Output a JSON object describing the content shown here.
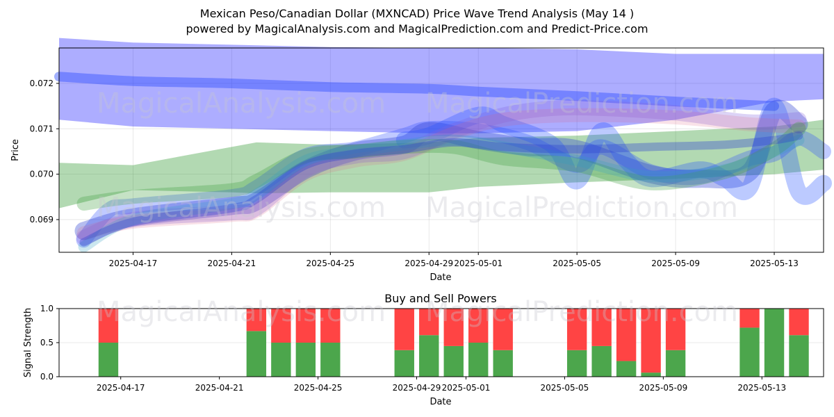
{
  "figure": {
    "title_line1": "Mexican Peso/Canadian Dollar (MXNCAD) Price Wave Trend Analysis (May 14 )",
    "title_line2": "powered by MagicalAnalysis.com and MagicalPrediction.com and Predict-Price.com",
    "watermarks": [
      "MagicalAnalysis.com",
      "MagicalPrediction.com"
    ]
  },
  "chart_data": [
    {
      "type": "line",
      "title": "",
      "xlabel": "Date",
      "ylabel": "Price",
      "x_tick_labels": [
        "2025-04-17",
        "2025-04-21",
        "2025-04-25",
        "2025-04-29",
        "2025-05-01",
        "2025-05-05",
        "2025-05-09",
        "2025-05-13"
      ],
      "x_ticks": [
        "2025-04-17",
        "2025-04-21",
        "2025-04-25",
        "2025-04-29",
        "2025-05-01",
        "2025-05-05",
        "2025-05-09",
        "2025-05-13"
      ],
      "xlim": [
        "2025-04-14",
        "2025-05-15"
      ],
      "y_tick_labels": [
        "0.069",
        "0.070",
        "0.071",
        "0.072"
      ],
      "y_ticks": [
        0.069,
        0.07,
        0.071,
        0.072
      ],
      "ylim": [
        0.06828,
        0.07278
      ],
      "grid": true,
      "bands": [
        {
          "color": "#0000ff",
          "opacity": 0.32,
          "x": [
            "2025-04-14",
            "2025-04-17",
            "2025-04-21",
            "2025-04-25",
            "2025-04-29",
            "2025-05-01",
            "2025-05-05",
            "2025-05-09",
            "2025-05-13",
            "2025-05-15"
          ],
          "upper": [
            0.073,
            0.0729,
            0.07285,
            0.0728,
            0.07278,
            0.07278,
            0.07275,
            0.07265,
            0.07265,
            0.07265
          ],
          "lower": [
            0.0712,
            0.07105,
            0.071,
            0.07095,
            0.0709,
            0.0709,
            0.07095,
            0.0712,
            0.0716,
            0.07165
          ]
        },
        {
          "color": "#008000",
          "opacity": 0.3,
          "x": [
            "2025-04-14",
            "2025-04-17",
            "2025-04-21",
            "2025-04-22",
            "2025-04-25",
            "2025-04-29",
            "2025-05-01",
            "2025-05-05",
            "2025-05-09",
            "2025-05-13",
            "2025-05-15"
          ],
          "upper": [
            0.07025,
            0.0702,
            0.0706,
            0.0707,
            0.07065,
            0.0707,
            0.0708,
            0.07085,
            0.07095,
            0.07105,
            0.0712
          ],
          "lower": [
            0.06925,
            0.06965,
            0.0696,
            0.06958,
            0.0696,
            0.0696,
            0.06972,
            0.06982,
            0.0699,
            0.07,
            0.0701
          ]
        }
      ],
      "series": [
        {
          "color": "#3050ff",
          "opacity": 0.45,
          "width": 14,
          "x": [
            "2025-04-14",
            "2025-04-17",
            "2025-04-21",
            "2025-04-25",
            "2025-04-29",
            "2025-05-01",
            "2025-05-05",
            "2025-05-09",
            "2025-05-13"
          ],
          "values": [
            0.07215,
            0.07205,
            0.072,
            0.07192,
            0.07188,
            0.07182,
            0.07172,
            0.0716,
            0.0715
          ]
        },
        {
          "color": "#3050ff",
          "opacity": 0.3,
          "width": 22,
          "x": [
            "2025-04-15",
            "2025-04-16",
            "2025-04-17",
            "2025-04-21",
            "2025-04-22",
            "2025-04-24",
            "2025-04-26",
            "2025-04-28",
            "2025-04-29",
            "2025-05-01",
            "2025-05-03",
            "2025-05-05",
            "2025-05-06",
            "2025-05-08",
            "2025-05-10",
            "2025-05-12",
            "2025-05-13",
            "2025-05-14",
            "2025-05-15"
          ],
          "values": [
            0.06855,
            0.0692,
            0.0693,
            0.0695,
            0.0697,
            0.0704,
            0.07055,
            0.07085,
            0.071,
            0.07095,
            0.0707,
            0.0702,
            0.0706,
            0.07005,
            0.06995,
            0.07035,
            0.07045,
            0.0708,
            0.0705
          ]
        },
        {
          "color": "#2a3fd0",
          "opacity": 0.35,
          "width": 26,
          "x": [
            "2025-04-15",
            "2025-04-17",
            "2025-04-21",
            "2025-04-22",
            "2025-04-24",
            "2025-04-26",
            "2025-04-28",
            "2025-04-29",
            "2025-05-01",
            "2025-05-03",
            "2025-05-05",
            "2025-05-08",
            "2025-05-10",
            "2025-05-12",
            "2025-05-13",
            "2025-05-14"
          ],
          "values": [
            0.06875,
            0.06905,
            0.0693,
            0.0694,
            0.0701,
            0.0705,
            0.07065,
            0.07095,
            0.07075,
            0.0706,
            0.07055,
            0.07,
            0.0699,
            0.07005,
            0.0714,
            0.0711
          ]
        },
        {
          "color": "#2050ff",
          "opacity": 0.3,
          "width": 24,
          "x": [
            "2025-04-28",
            "2025-04-29",
            "2025-05-01",
            "2025-05-02",
            "2025-05-04",
            "2025-05-05",
            "2025-05-06",
            "2025-05-07",
            "2025-05-08",
            "2025-05-10",
            "2025-05-11",
            "2025-05-12",
            "2025-05-13",
            "2025-05-14",
            "2025-05-15"
          ],
          "values": [
            0.07075,
            0.07085,
            0.0713,
            0.0711,
            0.07065,
            0.06985,
            0.07095,
            0.0703,
            0.0699,
            0.0701,
            0.0699,
            0.0697,
            0.0715,
            0.0696,
            0.0698
          ]
        },
        {
          "color": "#8060e0",
          "opacity": 0.28,
          "width": 22,
          "x": [
            "2025-04-15",
            "2025-04-17",
            "2025-04-21",
            "2025-04-22",
            "2025-04-24",
            "2025-04-26",
            "2025-04-28",
            "2025-04-30",
            "2025-05-02",
            "2025-05-04",
            "2025-05-06",
            "2025-05-09",
            "2025-05-12",
            "2025-05-14"
          ],
          "values": [
            0.0686,
            0.069,
            0.06915,
            0.06925,
            0.0701,
            0.0704,
            0.0705,
            0.07095,
            0.0713,
            0.07145,
            0.07145,
            0.07135,
            0.07115,
            0.0712
          ]
        },
        {
          "color": "#e06080",
          "opacity": 0.18,
          "width": 20,
          "x": [
            "2025-04-15",
            "2025-04-17",
            "2025-04-21",
            "2025-04-22",
            "2025-04-24",
            "2025-04-26",
            "2025-04-28",
            "2025-04-30",
            "2025-05-02",
            "2025-05-05",
            "2025-05-09",
            "2025-05-12",
            "2025-05-14"
          ],
          "values": [
            0.0687,
            0.06895,
            0.0691,
            0.0692,
            0.07,
            0.0703,
            0.07045,
            0.0709,
            0.0712,
            0.0713,
            0.07125,
            0.0711,
            0.07105
          ]
        },
        {
          "color": "#40a040",
          "opacity": 0.3,
          "width": 20,
          "x": [
            "2025-04-15",
            "2025-04-17",
            "2025-04-21",
            "2025-04-22",
            "2025-04-24",
            "2025-04-26",
            "2025-04-28",
            "2025-04-30",
            "2025-05-02",
            "2025-05-05",
            "2025-05-08",
            "2025-05-11",
            "2025-05-13",
            "2025-05-14"
          ],
          "values": [
            0.06935,
            0.0695,
            0.06965,
            0.06985,
            0.0704,
            0.0705,
            0.0706,
            0.0706,
            0.07035,
            0.0702,
            0.0698,
            0.07005,
            0.07055,
            0.071
          ]
        },
        {
          "color": "#30a0c0",
          "opacity": 0.25,
          "width": 16,
          "x": [
            "2025-04-15",
            "2025-04-17",
            "2025-04-21",
            "2025-04-22",
            "2025-04-24",
            "2025-04-26",
            "2025-04-28",
            "2025-04-30",
            "2025-05-02",
            "2025-05-05",
            "2025-05-08",
            "2025-05-11",
            "2025-05-13",
            "2025-05-14"
          ],
          "values": [
            0.0684,
            0.069,
            0.06935,
            0.06955,
            0.0703,
            0.0705,
            0.07065,
            0.07075,
            0.0706,
            0.0703,
            0.06995,
            0.0701,
            0.0705,
            0.07075
          ]
        },
        {
          "color": "#2a3fd0",
          "opacity": 0.35,
          "width": 12,
          "x": [
            "2025-04-15",
            "2025-04-17",
            "2025-04-21",
            "2025-04-22",
            "2025-04-24",
            "2025-04-26",
            "2025-04-28",
            "2025-04-30",
            "2025-05-02",
            "2025-05-05",
            "2025-05-08",
            "2025-05-11",
            "2025-05-13",
            "2025-05-14"
          ],
          "values": [
            0.0685,
            0.06895,
            0.06925,
            0.06945,
            0.0702,
            0.07045,
            0.07055,
            0.0707,
            0.0706,
            0.07055,
            0.0706,
            0.07065,
            0.07075,
            0.07085
          ]
        }
      ]
    },
    {
      "type": "bar",
      "title": "Buy and Sell Powers",
      "xlabel": "Date",
      "ylabel": "Signal Strength",
      "x_tick_labels": [
        "2025-04-17",
        "2025-04-21",
        "2025-04-25",
        "2025-04-29",
        "2025-05-01",
        "2025-05-05",
        "2025-05-09",
        "2025-05-13"
      ],
      "x_ticks": [
        "2025-04-17",
        "2025-04-21",
        "2025-04-25",
        "2025-04-29",
        "2025-05-01",
        "2025-05-05",
        "2025-05-09",
        "2025-05-13"
      ],
      "xlim": [
        "2025-04-14",
        "2025-05-15"
      ],
      "y_tick_labels": [
        "0.0",
        "0.5",
        "1.0"
      ],
      "y_ticks": [
        0.0,
        0.5,
        1.0
      ],
      "ylim": [
        0,
        1
      ],
      "grid": true,
      "buy_color": "#4ca64c",
      "sell_color": "#ff4444",
      "dates": [
        "2025-04-16",
        "2025-04-22",
        "2025-04-23",
        "2025-04-24",
        "2025-04-25",
        "2025-04-28",
        "2025-04-29",
        "2025-04-30",
        "2025-05-01",
        "2025-05-02",
        "2025-05-05",
        "2025-05-06",
        "2025-05-07",
        "2025-05-08",
        "2025-05-09",
        "2025-05-12",
        "2025-05-13",
        "2025-05-14"
      ],
      "buy": [
        0.5,
        0.67,
        0.5,
        0.5,
        0.5,
        0.39,
        0.61,
        0.45,
        0.5,
        0.39,
        0.39,
        0.45,
        0.23,
        0.06,
        0.39,
        0.72,
        1.0,
        0.61
      ],
      "sell": [
        0.5,
        0.33,
        0.5,
        0.5,
        0.5,
        0.61,
        0.39,
        0.55,
        0.5,
        0.61,
        0.61,
        0.55,
        0.77,
        0.94,
        0.61,
        0.28,
        0.0,
        0.39
      ]
    }
  ]
}
